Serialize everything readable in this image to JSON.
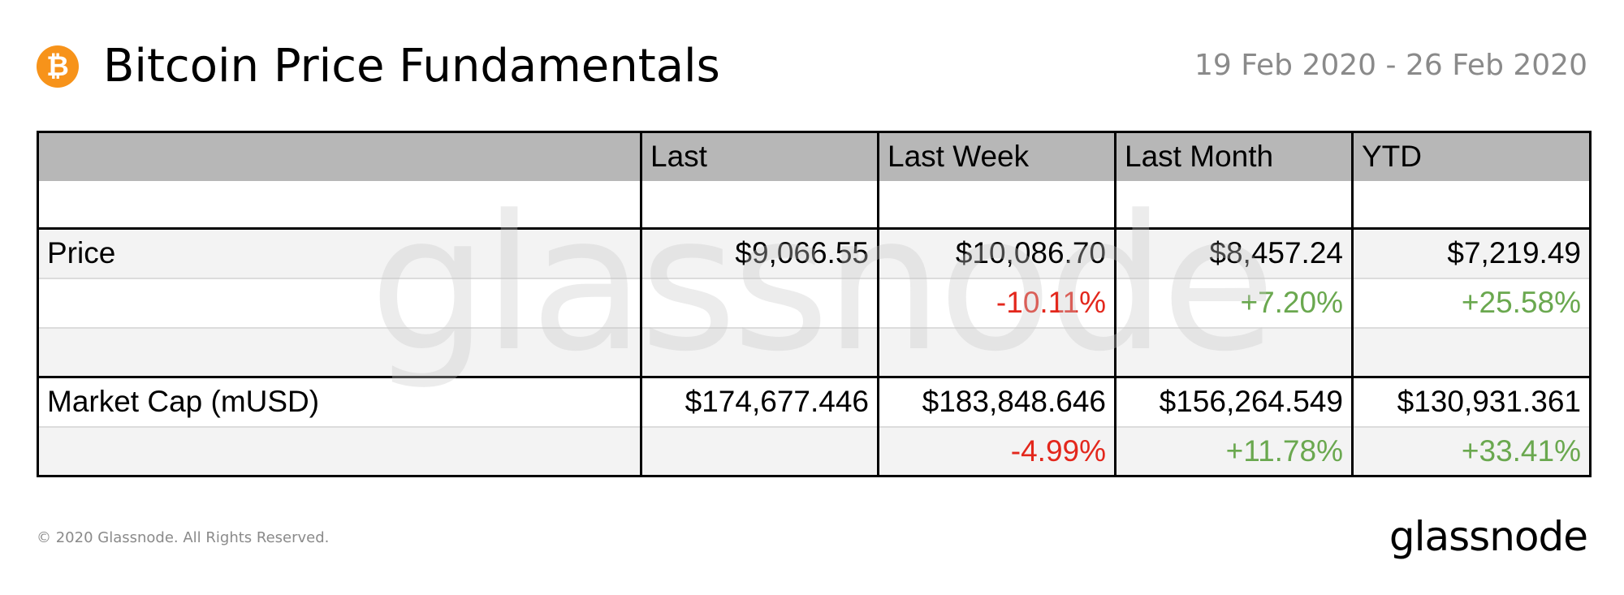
{
  "header": {
    "icon": "bitcoin-icon",
    "icon_glyph": "₿",
    "title": "Bitcoin Price Fundamentals",
    "date_range": "19 Feb 2020 - 26 Feb 2020"
  },
  "colors": {
    "bitcoin_orange": "#f7931a",
    "header_grey": "#b7b7b7",
    "negative": "#e3271c",
    "positive": "#6aa84f"
  },
  "table": {
    "columns": [
      "",
      "Last",
      "Last Week",
      "Last Month",
      "YTD"
    ],
    "rows": [
      {
        "label": "Price",
        "values": [
          "$9,066.55",
          "$10,086.70",
          "$8,457.24",
          "$7,219.49"
        ]
      },
      {
        "label": "",
        "values": [
          "",
          "-10.11%",
          "+7.20%",
          "+25.58%"
        ]
      },
      {
        "label": "",
        "values": [
          "",
          "",
          "",
          ""
        ]
      },
      {
        "label": "Market Cap (mUSD)",
        "values": [
          "$174,677.446",
          "$183,848.646",
          "$156,264.549",
          "$130,931.361"
        ]
      },
      {
        "label": "",
        "values": [
          "",
          "-4.99%",
          "+11.78%",
          "+33.41%"
        ]
      }
    ]
  },
  "watermark": "glassnode",
  "footer": {
    "copyright": "© 2020 Glassnode. All Rights Reserved.",
    "logo": "glassnode"
  }
}
